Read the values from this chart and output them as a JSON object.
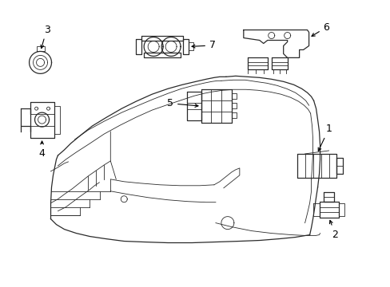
{
  "background_color": "#ffffff",
  "line_color": "#2a2a2a",
  "fig_width": 4.89,
  "fig_height": 3.6,
  "dpi": 100,
  "label_fontsize": 9,
  "arrow_lw": 0.7,
  "part_lw": 0.9,
  "thin_lw": 0.6
}
